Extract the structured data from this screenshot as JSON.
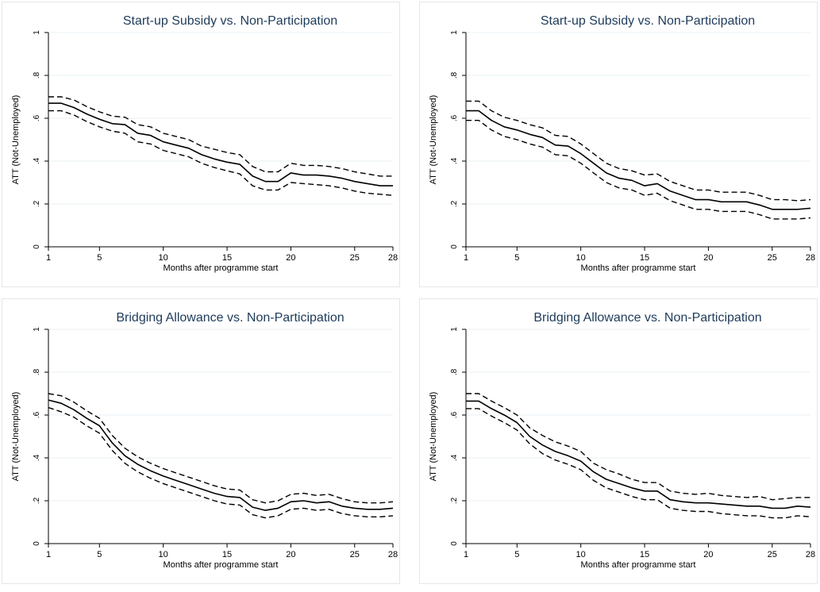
{
  "colors": {
    "line": "#000000",
    "grid": "#eaf0f4",
    "title": "#1e3b5a",
    "axis": "#000000",
    "text": "#000000"
  },
  "chart_data": [
    {
      "type": "line",
      "title": "Start-up Subsidy vs. Non-Participation",
      "xlabel": "Months after programme start",
      "ylabel": "ATT (Not-Unemployed)",
      "xticks": [
        "1",
        "5",
        "10",
        "15",
        "20",
        "25",
        "28"
      ],
      "yticks": [
        "0",
        ".2",
        ".4",
        ".6",
        ".8",
        "1"
      ],
      "xlim": [
        1,
        28
      ],
      "ylim": [
        0,
        1
      ],
      "grid": true,
      "x": [
        1,
        2,
        3,
        4,
        5,
        6,
        7,
        8,
        9,
        10,
        11,
        12,
        13,
        14,
        15,
        16,
        17,
        18,
        19,
        20,
        21,
        22,
        23,
        24,
        25,
        26,
        27,
        28
      ],
      "series": [
        {
          "style": "solid",
          "values": [
            0.67,
            0.67,
            0.65,
            0.62,
            0.595,
            0.575,
            0.57,
            0.53,
            0.52,
            0.49,
            0.475,
            0.46,
            0.43,
            0.41,
            0.395,
            0.385,
            0.33,
            0.305,
            0.305,
            0.345,
            0.335,
            0.335,
            0.33,
            0.32,
            0.305,
            0.295,
            0.285,
            0.285
          ]
        },
        {
          "style": "dashed",
          "values": [
            0.7,
            0.7,
            0.685,
            0.655,
            0.63,
            0.61,
            0.605,
            0.57,
            0.56,
            0.53,
            0.515,
            0.5,
            0.47,
            0.455,
            0.44,
            0.43,
            0.375,
            0.35,
            0.35,
            0.39,
            0.38,
            0.38,
            0.375,
            0.365,
            0.35,
            0.34,
            0.33,
            0.33
          ]
        },
        {
          "style": "dashed",
          "values": [
            0.635,
            0.635,
            0.615,
            0.585,
            0.56,
            0.54,
            0.53,
            0.49,
            0.48,
            0.45,
            0.435,
            0.42,
            0.39,
            0.37,
            0.355,
            0.34,
            0.285,
            0.265,
            0.265,
            0.3,
            0.295,
            0.29,
            0.285,
            0.275,
            0.26,
            0.25,
            0.245,
            0.24
          ]
        }
      ]
    },
    {
      "type": "line",
      "title": "Start-up Subsidy vs. Non-Participation",
      "xlabel": "Months after programme start",
      "ylabel": "ATT (Not-Unemployed)",
      "xticks": [
        "1",
        "5",
        "10",
        "15",
        "20",
        "25",
        "28"
      ],
      "yticks": [
        "0",
        ".2",
        ".4",
        ".6",
        ".8",
        "1"
      ],
      "xlim": [
        1,
        28
      ],
      "ylim": [
        0,
        1
      ],
      "grid": true,
      "x": [
        1,
        2,
        3,
        4,
        5,
        6,
        7,
        8,
        9,
        10,
        11,
        12,
        13,
        14,
        15,
        16,
        17,
        18,
        19,
        20,
        21,
        22,
        23,
        24,
        25,
        26,
        27,
        28
      ],
      "series": [
        {
          "style": "solid",
          "values": [
            0.635,
            0.635,
            0.59,
            0.56,
            0.545,
            0.525,
            0.51,
            0.475,
            0.47,
            0.435,
            0.39,
            0.345,
            0.32,
            0.31,
            0.285,
            0.295,
            0.26,
            0.24,
            0.22,
            0.22,
            0.21,
            0.21,
            0.21,
            0.195,
            0.175,
            0.175,
            0.175,
            0.18
          ]
        },
        {
          "style": "dashed",
          "values": [
            0.68,
            0.68,
            0.635,
            0.605,
            0.59,
            0.57,
            0.555,
            0.52,
            0.515,
            0.48,
            0.435,
            0.39,
            0.365,
            0.355,
            0.335,
            0.34,
            0.305,
            0.285,
            0.265,
            0.265,
            0.255,
            0.255,
            0.255,
            0.24,
            0.22,
            0.22,
            0.215,
            0.22
          ]
        },
        {
          "style": "dashed",
          "values": [
            0.59,
            0.59,
            0.545,
            0.515,
            0.5,
            0.48,
            0.465,
            0.43,
            0.425,
            0.39,
            0.345,
            0.3,
            0.275,
            0.265,
            0.24,
            0.25,
            0.215,
            0.195,
            0.175,
            0.175,
            0.165,
            0.165,
            0.165,
            0.15,
            0.13,
            0.13,
            0.13,
            0.135
          ]
        }
      ]
    },
    {
      "type": "line",
      "title": "Bridging Allowance vs. Non-Participation",
      "xlabel": "Months after programme start",
      "ylabel": "ATT (Not-Unemployed)",
      "xticks": [
        "1",
        "5",
        "10",
        "15",
        "20",
        "25",
        "28"
      ],
      "yticks": [
        "0",
        ".2",
        ".4",
        ".6",
        ".8",
        "1"
      ],
      "xlim": [
        1,
        28
      ],
      "ylim": [
        0,
        1
      ],
      "grid": true,
      "x": [
        1,
        2,
        3,
        4,
        5,
        6,
        7,
        8,
        9,
        10,
        11,
        12,
        13,
        14,
        15,
        16,
        17,
        18,
        19,
        20,
        21,
        22,
        23,
        24,
        25,
        26,
        27,
        28
      ],
      "series": [
        {
          "style": "solid",
          "values": [
            0.67,
            0.655,
            0.625,
            0.585,
            0.55,
            0.47,
            0.41,
            0.37,
            0.34,
            0.315,
            0.295,
            0.275,
            0.255,
            0.235,
            0.22,
            0.215,
            0.17,
            0.155,
            0.165,
            0.195,
            0.2,
            0.19,
            0.195,
            0.175,
            0.165,
            0.16,
            0.16,
            0.165
          ]
        },
        {
          "style": "dashed",
          "values": [
            0.7,
            0.69,
            0.66,
            0.62,
            0.585,
            0.505,
            0.445,
            0.405,
            0.375,
            0.35,
            0.33,
            0.31,
            0.29,
            0.27,
            0.255,
            0.25,
            0.205,
            0.19,
            0.2,
            0.23,
            0.235,
            0.225,
            0.23,
            0.21,
            0.195,
            0.19,
            0.19,
            0.195
          ]
        },
        {
          "style": "dashed",
          "values": [
            0.635,
            0.615,
            0.59,
            0.55,
            0.515,
            0.435,
            0.375,
            0.335,
            0.305,
            0.28,
            0.26,
            0.24,
            0.22,
            0.2,
            0.185,
            0.18,
            0.135,
            0.12,
            0.13,
            0.16,
            0.165,
            0.155,
            0.16,
            0.14,
            0.13,
            0.125,
            0.125,
            0.13
          ]
        }
      ]
    },
    {
      "type": "line",
      "title": "Bridging Allowance vs. Non-Participation",
      "xlabel": "Months after programme start",
      "ylabel": "ATT (Not-Unemployed)",
      "xticks": [
        "1",
        "5",
        "10",
        "15",
        "20",
        "25",
        "28"
      ],
      "yticks": [
        "0",
        ".2",
        ".4",
        ".6",
        ".8",
        "1"
      ],
      "xlim": [
        1,
        28
      ],
      "ylim": [
        0,
        1
      ],
      "grid": true,
      "x": [
        1,
        2,
        3,
        4,
        5,
        6,
        7,
        8,
        9,
        10,
        11,
        12,
        13,
        14,
        15,
        16,
        17,
        18,
        19,
        20,
        21,
        22,
        23,
        24,
        25,
        26,
        27,
        28
      ],
      "series": [
        {
          "style": "solid",
          "values": [
            0.665,
            0.665,
            0.63,
            0.6,
            0.565,
            0.5,
            0.46,
            0.43,
            0.41,
            0.385,
            0.335,
            0.3,
            0.28,
            0.26,
            0.245,
            0.245,
            0.205,
            0.195,
            0.19,
            0.19,
            0.185,
            0.18,
            0.175,
            0.175,
            0.165,
            0.165,
            0.175,
            0.17
          ]
        },
        {
          "style": "dashed",
          "values": [
            0.7,
            0.7,
            0.665,
            0.635,
            0.6,
            0.54,
            0.505,
            0.475,
            0.455,
            0.43,
            0.375,
            0.345,
            0.325,
            0.3,
            0.285,
            0.285,
            0.245,
            0.235,
            0.23,
            0.235,
            0.225,
            0.22,
            0.215,
            0.22,
            0.205,
            0.21,
            0.215,
            0.215
          ]
        },
        {
          "style": "dashed",
          "values": [
            0.63,
            0.63,
            0.595,
            0.565,
            0.53,
            0.465,
            0.42,
            0.39,
            0.37,
            0.345,
            0.295,
            0.26,
            0.24,
            0.22,
            0.205,
            0.205,
            0.165,
            0.155,
            0.15,
            0.15,
            0.14,
            0.135,
            0.13,
            0.13,
            0.12,
            0.12,
            0.13,
            0.125
          ]
        }
      ]
    }
  ]
}
